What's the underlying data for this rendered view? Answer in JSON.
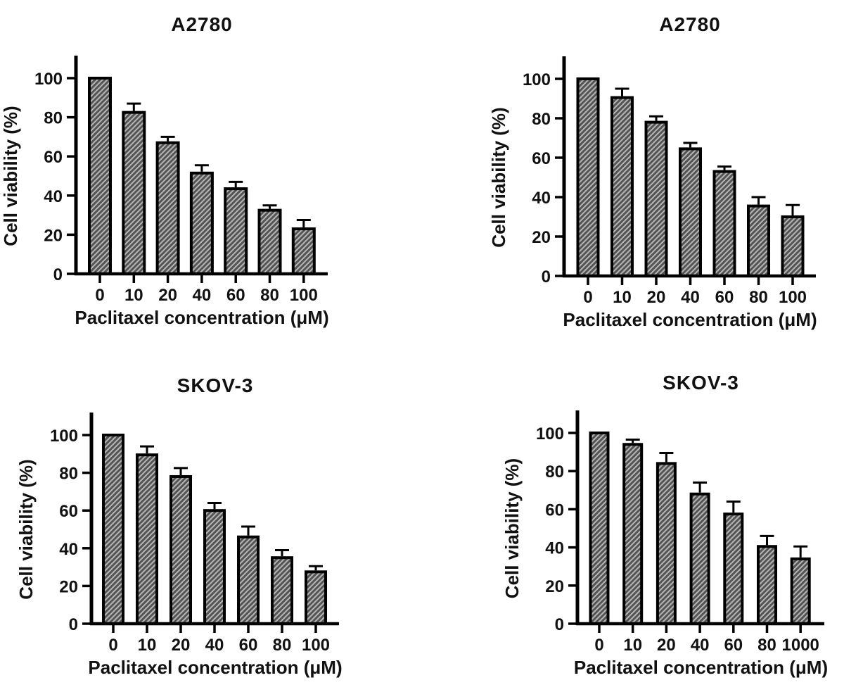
{
  "figure": {
    "background": "#ffffff",
    "colors": {
      "bar_fill": "#525252",
      "bar_hatch": "#b3b3b3",
      "bar_border": "#000000",
      "axis": "#000000",
      "error_bar": "#000000",
      "text": "#111111"
    }
  },
  "chart_data": [
    {
      "id": "a2780-top-left",
      "type": "bar",
      "title": "A2780",
      "xlabel": "Paclitaxel concentration (μM)",
      "ylabel": "Cell viability (%)",
      "categories": [
        "0",
        "10",
        "20",
        "40",
        "60",
        "80",
        "100"
      ],
      "values": [
        100,
        82.5,
        67,
        51.5,
        43.5,
        32.5,
        23
      ],
      "errors": [
        0,
        4.5,
        3,
        4,
        3.5,
        2.5,
        4.5
      ],
      "yticks": [
        0,
        20,
        40,
        60,
        80,
        100
      ],
      "ylim": [
        0,
        112
      ],
      "grid": false,
      "legend": null,
      "hatch": "diagonal"
    },
    {
      "id": "a2780-top-right",
      "type": "bar",
      "title": "A2780",
      "xlabel": "Paclitaxel concentration (μM)",
      "ylabel": "Cell viability (%)",
      "categories": [
        "0",
        "10",
        "20",
        "40",
        "60",
        "80",
        "100"
      ],
      "values": [
        100,
        90.5,
        78,
        64.5,
        53,
        35.5,
        30
      ],
      "errors": [
        0,
        4.5,
        3,
        3,
        2.5,
        4.5,
        6
      ],
      "yticks": [
        0,
        20,
        40,
        60,
        80,
        100
      ],
      "ylim": [
        0,
        112
      ],
      "grid": false,
      "legend": null,
      "hatch": "diagonal"
    },
    {
      "id": "skov3-bottom-left",
      "type": "bar",
      "title": "SKOV-3",
      "xlabel": "Paclitaxel concentration (μM)",
      "ylabel": "Cell viability (%)",
      "categories": [
        "0",
        "10",
        "20",
        "40",
        "60",
        "80",
        "100"
      ],
      "values": [
        100,
        89.5,
        78,
        60,
        46,
        35,
        27.5
      ],
      "errors": [
        0,
        4.5,
        4.5,
        4,
        5.5,
        4,
        3
      ],
      "yticks": [
        0,
        20,
        40,
        60,
        80,
        100
      ],
      "ylim": [
        0,
        112
      ],
      "grid": false,
      "legend": null,
      "hatch": "diagonal"
    },
    {
      "id": "skov3-bottom-right",
      "type": "bar",
      "title": "SKOV-3",
      "xlabel": "Paclitaxel concentration (μM)",
      "ylabel": "Cell viability (%)",
      "categories": [
        "0",
        "10",
        "20",
        "40",
        "60",
        "80",
        "1000"
      ],
      "values": [
        100,
        94,
        84,
        68,
        57.5,
        40.5,
        34
      ],
      "errors": [
        0,
        2.5,
        5.5,
        6,
        6.5,
        5.5,
        6.5
      ],
      "yticks": [
        0,
        20,
        40,
        60,
        80,
        100
      ],
      "ylim": [
        0,
        112
      ],
      "grid": false,
      "legend": null,
      "hatch": "diagonal"
    }
  ]
}
